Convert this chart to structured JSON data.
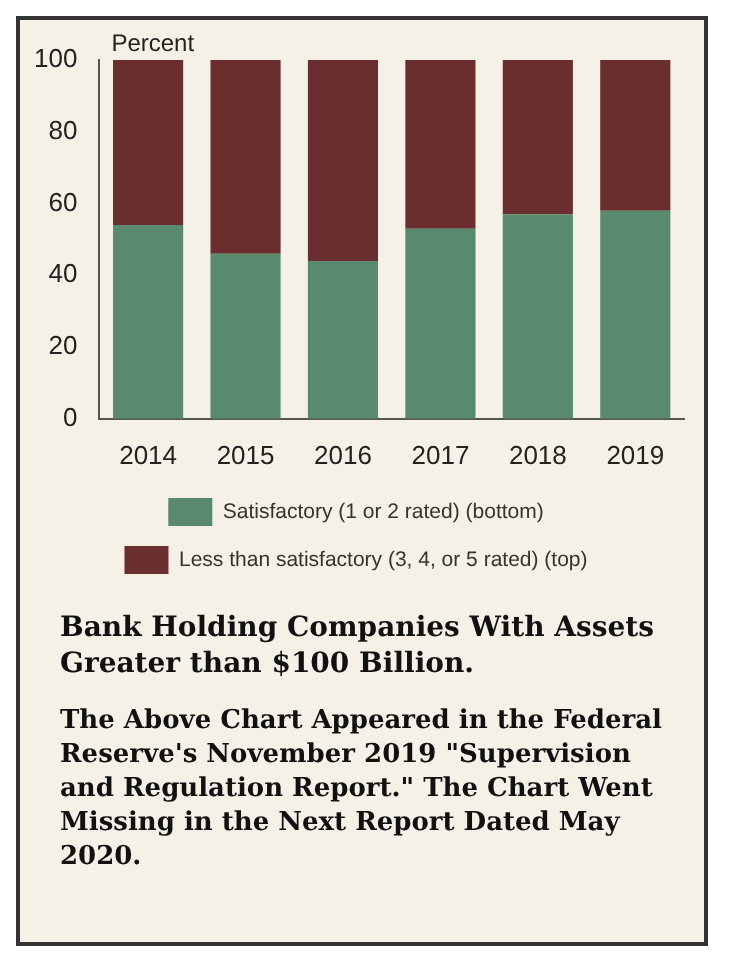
{
  "chart_data": {
    "type": "bar",
    "stacked": true,
    "ylabel": "Percent",
    "categories": [
      "2014",
      "2015",
      "2016",
      "2017",
      "2018",
      "2019"
    ],
    "series": [
      {
        "name": "Satisfactory (1 or 2 rated) (bottom)",
        "color": "#5a8a6e",
        "values": [
          54,
          46,
          44,
          53,
          57,
          58
        ]
      },
      {
        "name": "Less than satisfactory (3, 4, or 5 rated) (top)",
        "color": "#6b2e2f",
        "values": [
          46,
          54,
          56,
          47,
          43,
          42
        ]
      }
    ],
    "ylim": [
      0,
      100
    ],
    "yticks": [
      0,
      20,
      40,
      60,
      80,
      100
    ],
    "grid": false,
    "legend": "bottom",
    "annotations": [
      "Bank Holding Companies With Assets Greater than $100 Billion.",
      "The Above Chart Appeared in the Federal Reserve's November 2019 \"Supervision and Regulation Report.\" The Chart Went Missing in the Next Report Dated May 2020."
    ]
  }
}
